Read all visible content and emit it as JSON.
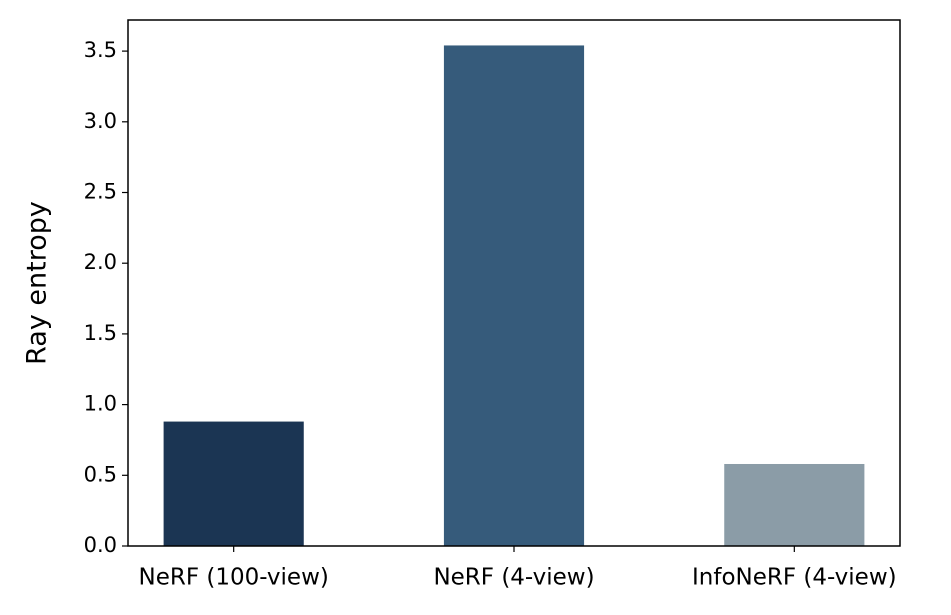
{
  "chart_data": {
    "type": "bar",
    "ylabel": "Ray entropy",
    "categories": [
      "NeRF (100-view)",
      "NeRF (4-view)",
      "InfoNeRF (4-view)"
    ],
    "values": [
      0.88,
      3.54,
      0.58
    ],
    "colors": [
      "#1b3553",
      "#365b7b",
      "#8b9ca7"
    ],
    "ylim": [
      0,
      3.72
    ],
    "yticks": [
      {
        "value": 0,
        "label": "0.0"
      },
      0.5,
      {
        "value": 1,
        "label": "1.0"
      },
      1.5,
      {
        "value": 2,
        "label": "2.0"
      },
      2.5,
      {
        "value": 3,
        "label": "3.0"
      },
      3.5
    ],
    "grid": false
  }
}
